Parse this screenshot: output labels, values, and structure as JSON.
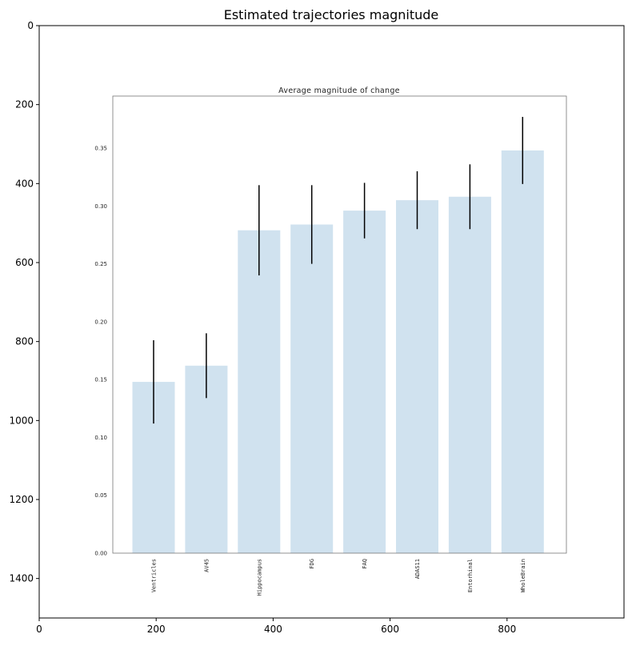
{
  "chart_data": [
    {
      "type": "image-axes",
      "title": "Estimated trajectories magnitude",
      "x_ticks": [
        0,
        200,
        400,
        600,
        800
      ],
      "y_ticks": [
        0,
        200,
        400,
        600,
        800,
        1000,
        1200,
        1400
      ],
      "xlim": [
        0,
        1000
      ],
      "ylim": [
        1500,
        0
      ]
    },
    {
      "type": "bar",
      "title": "Average magnitude of change",
      "categories": [
        "Ventricles",
        "AV45",
        "Hippocampus",
        "FDG",
        "FAQ",
        "ADAS11",
        "Entorhinal",
        "WholeBrain"
      ],
      "values": [
        0.148,
        0.162,
        0.279,
        0.284,
        0.296,
        0.305,
        0.308,
        0.348
      ],
      "errors": [
        0.036,
        0.028,
        0.039,
        0.034,
        0.024,
        0.025,
        0.028,
        0.029
      ],
      "y_ticks": [
        0.0,
        0.05,
        0.1,
        0.15,
        0.2,
        0.25,
        0.3,
        0.35
      ],
      "y_tick_labels": [
        "0.00",
        "0.05",
        "0.10",
        "0.15",
        "0.20",
        "0.25",
        "0.30",
        "0.35"
      ],
      "ylim": [
        0,
        0.395
      ],
      "bar_color": "#d0e2ef",
      "error_color": "#000000"
    }
  ]
}
